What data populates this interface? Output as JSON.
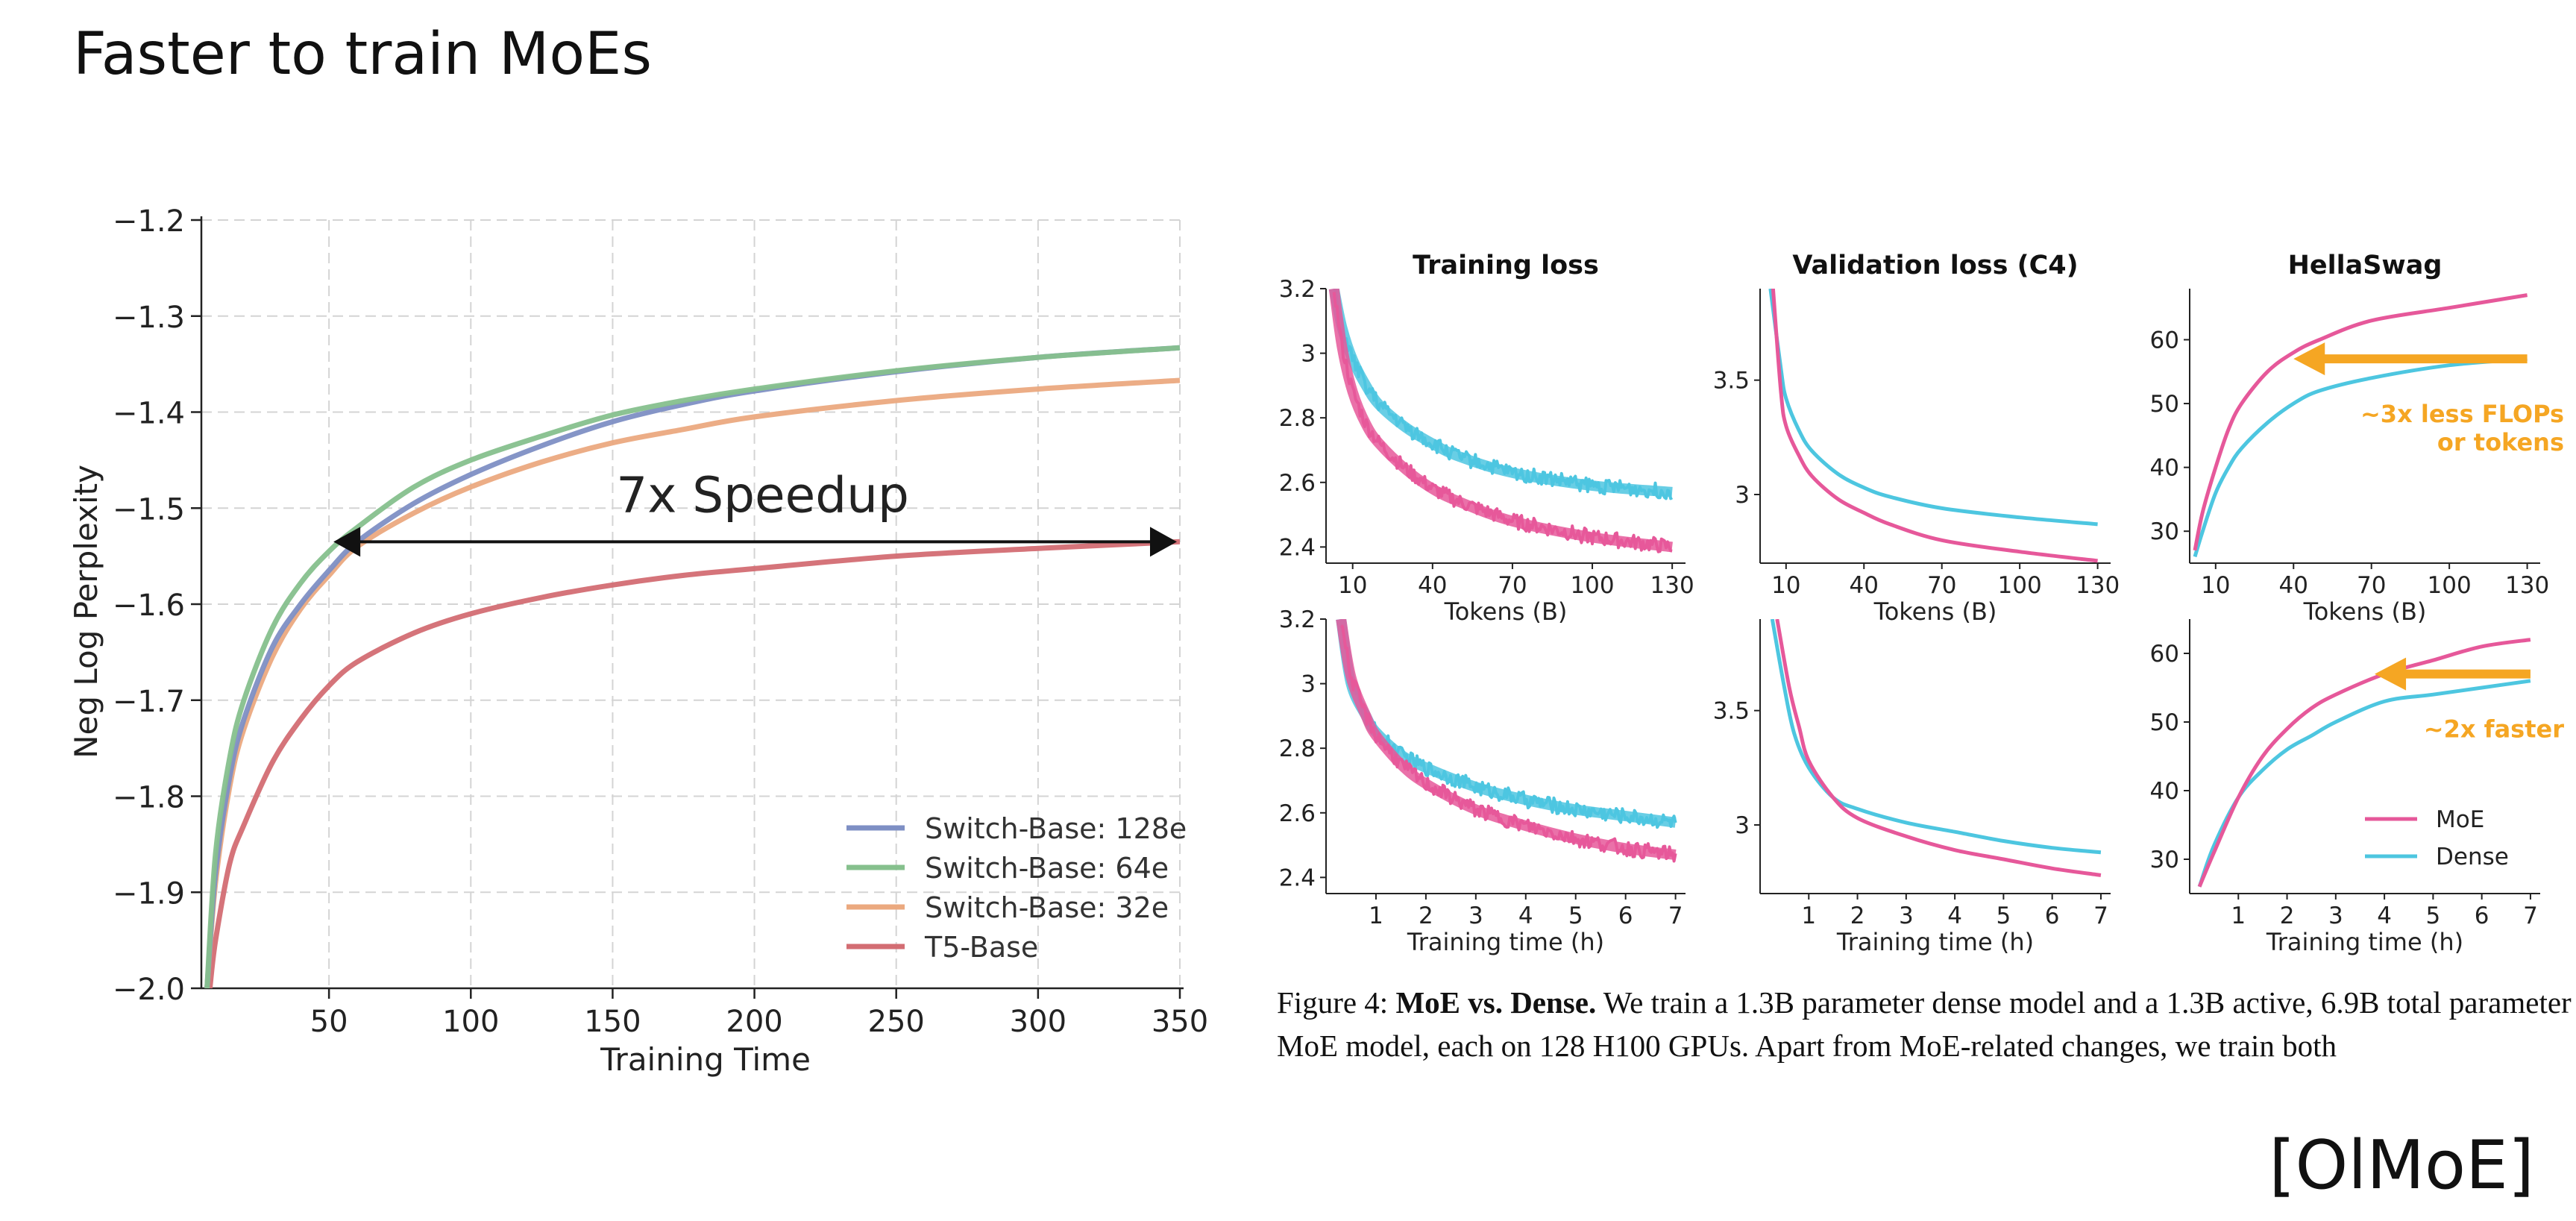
{
  "slide": {
    "title": "Faster to train MoEs",
    "citation": "[OlMoE]"
  },
  "caption": {
    "label": "Figure 4:",
    "bold": "MoE vs. Dense.",
    "text": "We train a 1.3B parameter dense model and a 1.3B active, 6.9B total parameter MoE model, each on 128 H100 GPUs. Apart from MoE-related changes, we train both"
  },
  "colors": {
    "switch128": "#7e8fc4",
    "switch64": "#86c08d",
    "switch32": "#eba97f",
    "t5": "#d36d73",
    "moe": "#e6589a",
    "dense": "#4dc6e0",
    "annotation": "#f5a623"
  },
  "chart_data": [
    {
      "id": "switch",
      "type": "line",
      "title": "",
      "xlabel": "Training Time",
      "ylabel": "Neg Log Perplexity",
      "xlim": [
        5,
        350
      ],
      "ylim": [
        -2.0,
        -1.2
      ],
      "xticks": [
        50,
        100,
        150,
        200,
        250,
        300,
        350
      ],
      "yticks": [
        -1.2,
        -1.3,
        -1.4,
        -1.5,
        -1.6,
        -1.7,
        -1.8,
        -1.9,
        -2.0
      ],
      "grid": true,
      "legend": "bottom-right",
      "annotation": {
        "text": "7x Speedup",
        "from_x": 50,
        "to_x": 350,
        "y": -1.535
      },
      "series": [
        {
          "name": "Switch-Base: 128e",
          "color_key": "switch128",
          "x": [
            7,
            10,
            15,
            20,
            30,
            40,
            50,
            60,
            80,
            100,
            125,
            150,
            175,
            200,
            250,
            300,
            350
          ],
          "y": [
            -2.0,
            -1.88,
            -1.78,
            -1.72,
            -1.645,
            -1.6,
            -1.565,
            -1.535,
            -1.495,
            -1.465,
            -1.435,
            -1.41,
            -1.392,
            -1.378,
            -1.358,
            -1.343,
            -1.333
          ]
        },
        {
          "name": "Switch-Base: 64e",
          "color_key": "switch64",
          "x": [
            7,
            10,
            15,
            20,
            30,
            40,
            50,
            60,
            80,
            100,
            125,
            150,
            175,
            200,
            250,
            300,
            350
          ],
          "y": [
            -2.0,
            -1.86,
            -1.76,
            -1.7,
            -1.625,
            -1.578,
            -1.545,
            -1.52,
            -1.478,
            -1.45,
            -1.425,
            -1.403,
            -1.388,
            -1.376,
            -1.357,
            -1.343,
            -1.333
          ]
        },
        {
          "name": "Switch-Base: 32e",
          "color_key": "switch32",
          "x": [
            7,
            10,
            15,
            20,
            30,
            40,
            50,
            60,
            80,
            100,
            125,
            150,
            175,
            200,
            250,
            300,
            350
          ],
          "y": [
            -2.0,
            -1.89,
            -1.79,
            -1.73,
            -1.655,
            -1.605,
            -1.57,
            -1.54,
            -1.505,
            -1.478,
            -1.452,
            -1.432,
            -1.418,
            -1.405,
            -1.388,
            -1.376,
            -1.367
          ]
        },
        {
          "name": "T5-Base",
          "color_key": "t5",
          "x": [
            8,
            10,
            15,
            20,
            30,
            40,
            50,
            60,
            80,
            100,
            125,
            150,
            175,
            200,
            250,
            300,
            350
          ],
          "y": [
            -2.0,
            -1.95,
            -1.87,
            -1.83,
            -1.765,
            -1.72,
            -1.685,
            -1.66,
            -1.63,
            -1.61,
            -1.593,
            -1.58,
            -1.57,
            -1.563,
            -1.55,
            -1.542,
            -1.535
          ]
        }
      ]
    },
    {
      "id": "train-tokens",
      "type": "line",
      "title": "Training loss",
      "xlabel": "Tokens (B)",
      "ylabel": "",
      "xlim": [
        0,
        135
      ],
      "ylim": [
        2.35,
        3.2
      ],
      "xticks": [
        10,
        40,
        70,
        100,
        130
      ],
      "yticks": [
        3.2,
        3.0,
        2.8,
        2.6,
        2.4
      ],
      "noisy": true,
      "series": [
        {
          "name": "MoE",
          "color_key": "moe",
          "x": [
            3,
            6,
            10,
            15,
            20,
            30,
            40,
            50,
            70,
            100,
            130
          ],
          "y": [
            3.2,
            3.02,
            2.88,
            2.78,
            2.72,
            2.64,
            2.58,
            2.54,
            2.48,
            2.43,
            2.4
          ]
        },
        {
          "name": "Dense",
          "color_key": "dense",
          "x": [
            3,
            6,
            10,
            15,
            20,
            30,
            40,
            50,
            70,
            100,
            130
          ],
          "y": [
            3.2,
            3.08,
            2.98,
            2.9,
            2.84,
            2.77,
            2.72,
            2.68,
            2.63,
            2.59,
            2.57
          ]
        }
      ]
    },
    {
      "id": "val-tokens",
      "type": "line",
      "title": "Validation loss (C4)",
      "xlabel": "Tokens (B)",
      "ylabel": "",
      "xlim": [
        0,
        135
      ],
      "ylim": [
        2.7,
        3.9
      ],
      "xticks": [
        10,
        40,
        70,
        100,
        130
      ],
      "yticks": [
        3.5,
        3.0
      ],
      "series": [
        {
          "name": "MoE",
          "color_key": "moe",
          "x": [
            5,
            8,
            10,
            15,
            20,
            30,
            40,
            50,
            70,
            100,
            130
          ],
          "y": [
            3.9,
            3.45,
            3.3,
            3.17,
            3.08,
            2.98,
            2.92,
            2.87,
            2.8,
            2.75,
            2.71
          ]
        },
        {
          "name": "Dense",
          "color_key": "dense",
          "x": [
            4,
            8,
            10,
            15,
            20,
            30,
            40,
            50,
            70,
            100,
            130
          ],
          "y": [
            3.9,
            3.55,
            3.42,
            3.28,
            3.19,
            3.09,
            3.03,
            2.99,
            2.94,
            2.9,
            2.87
          ]
        }
      ]
    },
    {
      "id": "hella-tokens",
      "type": "line",
      "title": "HellaSwag",
      "xlabel": "Tokens (B)",
      "ylabel": "",
      "xlim": [
        0,
        135
      ],
      "ylim": [
        25,
        68
      ],
      "xticks": [
        10,
        40,
        70,
        100,
        130
      ],
      "yticks": [
        60,
        50,
        40,
        30
      ],
      "annotation": {
        "text": "~3x less FLOPs or tokens",
        "from_x": 130,
        "to_x": 40,
        "y": 57
      },
      "series": [
        {
          "name": "MoE",
          "color_key": "moe",
          "x": [
            2,
            5,
            10,
            15,
            20,
            30,
            40,
            50,
            70,
            100,
            130
          ],
          "y": [
            27,
            33,
            40,
            46,
            50,
            55,
            58,
            60,
            63,
            65,
            67
          ]
        },
        {
          "name": "Dense",
          "color_key": "dense",
          "x": [
            2,
            5,
            10,
            15,
            20,
            30,
            40,
            50,
            70,
            100,
            130
          ],
          "y": [
            26,
            30,
            36,
            40,
            43,
            47,
            50,
            52,
            54,
            56,
            57
          ]
        }
      ]
    },
    {
      "id": "train-time",
      "type": "line",
      "title": "",
      "xlabel": "Training time (h)",
      "ylabel": "",
      "xlim": [
        0,
        7.2
      ],
      "ylim": [
        2.35,
        3.2
      ],
      "xticks": [
        1,
        2,
        3,
        4,
        5,
        6,
        7
      ],
      "yticks": [
        3.2,
        3.0,
        2.8,
        2.6,
        2.4
      ],
      "noisy": true,
      "series": [
        {
          "name": "MoE",
          "color_key": "moe",
          "x": [
            0.3,
            0.5,
            0.8,
            1,
            1.5,
            2,
            3,
            4,
            5,
            6,
            7
          ],
          "y": [
            3.2,
            3.02,
            2.9,
            2.84,
            2.75,
            2.69,
            2.61,
            2.56,
            2.52,
            2.49,
            2.47
          ]
        },
        {
          "name": "Dense",
          "color_key": "dense",
          "x": [
            0.3,
            0.5,
            0.8,
            1,
            1.5,
            2,
            3,
            4,
            5,
            6,
            7
          ],
          "y": [
            3.2,
            3.0,
            2.9,
            2.85,
            2.78,
            2.74,
            2.68,
            2.64,
            2.61,
            2.59,
            2.57
          ]
        }
      ]
    },
    {
      "id": "val-time",
      "type": "line",
      "title": "",
      "xlabel": "Training time (h)",
      "ylabel": "",
      "xlim": [
        0,
        7.2
      ],
      "ylim": [
        2.7,
        3.9
      ],
      "xticks": [
        1,
        2,
        3,
        4,
        5,
        6,
        7
      ],
      "yticks": [
        3.5,
        3.0
      ],
      "series": [
        {
          "name": "MoE",
          "color_key": "moe",
          "x": [
            0.35,
            0.6,
            0.8,
            1,
            1.5,
            2,
            3,
            4,
            5,
            6,
            7
          ],
          "y": [
            3.9,
            3.6,
            3.43,
            3.28,
            3.12,
            3.03,
            2.95,
            2.89,
            2.85,
            2.81,
            2.78
          ]
        },
        {
          "name": "Dense",
          "color_key": "dense",
          "x": [
            0.25,
            0.5,
            0.7,
            1,
            1.5,
            2,
            3,
            4,
            5,
            6,
            7
          ],
          "y": [
            3.9,
            3.6,
            3.4,
            3.25,
            3.12,
            3.07,
            3.01,
            2.97,
            2.93,
            2.9,
            2.88
          ]
        }
      ]
    },
    {
      "id": "hella-time",
      "type": "line",
      "title": "",
      "xlabel": "Training time (h)",
      "ylabel": "",
      "xlim": [
        0,
        7.2
      ],
      "ylim": [
        25,
        65
      ],
      "xticks": [
        1,
        2,
        3,
        4,
        5,
        6,
        7
      ],
      "yticks": [
        60,
        50,
        40,
        30
      ],
      "legend": "bottom-right",
      "annotation": {
        "text": "~2x faster",
        "from_x": 7,
        "to_x": 3.8,
        "y": 57
      },
      "series": [
        {
          "name": "MoE",
          "color_key": "moe",
          "x": [
            0.2,
            0.5,
            1,
            1.5,
            2,
            2.5,
            3,
            4,
            5,
            6,
            7
          ],
          "y": [
            26,
            31,
            39,
            45,
            49,
            52,
            54,
            57,
            59,
            61,
            62
          ]
        },
        {
          "name": "Dense",
          "color_key": "dense",
          "x": [
            0.2,
            0.5,
            1,
            1.5,
            2,
            2.5,
            3,
            4,
            5,
            6,
            7
          ],
          "y": [
            26,
            32,
            39,
            43,
            46,
            48,
            50,
            53,
            54,
            55,
            56
          ]
        }
      ]
    }
  ]
}
